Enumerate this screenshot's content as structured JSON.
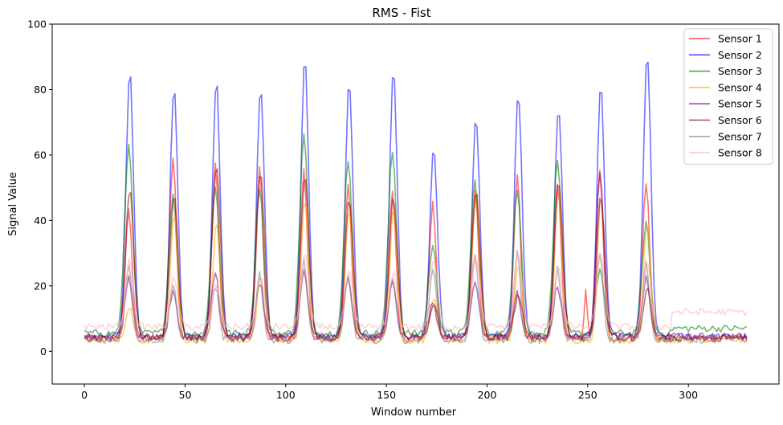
{
  "chart_data": {
    "type": "line",
    "title": "RMS - Fist",
    "xlabel": "Window number",
    "ylabel": "Signal Value",
    "xlim": [
      -16,
      345
    ],
    "ylim": [
      -10,
      100
    ],
    "xticks": [
      0,
      50,
      100,
      150,
      200,
      250,
      300
    ],
    "yticks": [
      0,
      20,
      40,
      60,
      80,
      100
    ],
    "grid": false,
    "legend_position": "top-right",
    "x_start": 0,
    "x_end": 329,
    "peak_centers": [
      22,
      44,
      65,
      87,
      109,
      131,
      153,
      173,
      194,
      215,
      235,
      256,
      279
    ],
    "series": [
      {
        "name": "Sensor 1",
        "color": "#ff0000",
        "opacity": 0.55,
        "baseline": 4,
        "peaks": [
          43,
          59,
          58,
          56,
          55,
          50,
          49,
          45,
          50,
          53,
          52,
          55,
          52
        ],
        "extra_peaks": [
          [
            249,
            18
          ]
        ]
      },
      {
        "name": "Sensor 2",
        "color": "#0000ff",
        "opacity": 0.55,
        "baseline": 4.5,
        "peaks": [
          86,
          81,
          83,
          81,
          89,
          83,
          86,
          63,
          72,
          79,
          75,
          81,
          91
        ]
      },
      {
        "name": "Sensor 3",
        "color": "#008000",
        "opacity": 0.55,
        "baseline": 5.5,
        "peaks": [
          63,
          48,
          50,
          50,
          66,
          58,
          61,
          32,
          52,
          50,
          58,
          25,
          39
        ],
        "tail": 7
      },
      {
        "name": "Sensor 4",
        "color": "#ffa500",
        "opacity": 0.55,
        "baseline": 3.5,
        "peaks": [
          14,
          42,
          40,
          22,
          46,
          44,
          44,
          17,
          50,
          26,
          51,
          46,
          40
        ]
      },
      {
        "name": "Sensor 5",
        "color": "#800080",
        "opacity": 0.55,
        "baseline": 4.5,
        "peaks": [
          22,
          18,
          24,
          21,
          25,
          22,
          22,
          15,
          22,
          18,
          20,
          55,
          22
        ]
      },
      {
        "name": "Sensor 6",
        "color": "#8b0000",
        "opacity": 0.55,
        "baseline": 4,
        "peaks": [
          50,
          48,
          57,
          55,
          54,
          47,
          47,
          14,
          49,
          17,
          52,
          47,
          19
        ]
      },
      {
        "name": "Sensor 7",
        "color": "#808080",
        "opacity": 0.55,
        "baseline": 3.5,
        "peaks": [
          27,
          21,
          20,
          24,
          28,
          23,
          23,
          26,
          29,
          30,
          25,
          30,
          27
        ]
      },
      {
        "name": "Sensor 8",
        "color": "#ffb6c1",
        "opacity": 0.6,
        "baseline": 7.5,
        "peaks": [
          28,
          22,
          20,
          22,
          30,
          24,
          24,
          28,
          29,
          30,
          26,
          30,
          26
        ],
        "tail": 12
      }
    ]
  }
}
